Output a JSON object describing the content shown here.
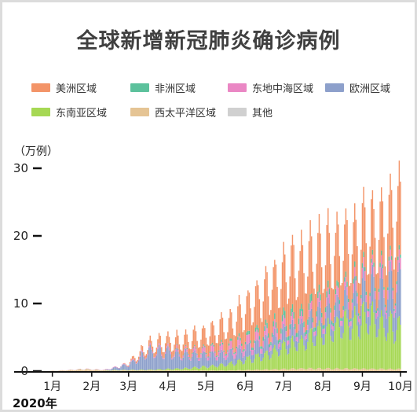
{
  "title": "全球新增新冠肺炎确诊病例",
  "unit_label": "（万例）",
  "year_label": "2020年",
  "chart_data": {
    "type": "bar",
    "stacked": true,
    "title": "全球新增新冠肺炎确诊病例",
    "ylabel": "（万例）",
    "ylim": [
      0,
      30
    ],
    "yticks": [
      0,
      10,
      20,
      30
    ],
    "xlim": [
      "2020-01-01",
      "2020-10-15"
    ],
    "month_ticks": [
      {
        "label": "1月",
        "date": "2020-01-15"
      },
      {
        "label": "2月",
        "date": "2020-02-15"
      },
      {
        "label": "3月",
        "date": "2020-03-15"
      },
      {
        "label": "4月",
        "date": "2020-04-15"
      },
      {
        "label": "5月",
        "date": "2020-05-15"
      },
      {
        "label": "6月",
        "date": "2020-06-15"
      },
      {
        "label": "7月",
        "date": "2020-07-15"
      },
      {
        "label": "8月",
        "date": "2020-08-15"
      },
      {
        "label": "9月",
        "date": "2020-09-15"
      },
      {
        "label": "10月",
        "date": "2020-10-15"
      }
    ],
    "series_order": [
      "西太平洋区域",
      "东南亚区域",
      "欧洲区域",
      "东地中海区域",
      "非洲区域",
      "美洲区域"
    ],
    "series": [
      {
        "name": "美洲区域",
        "color": "#f39468",
        "x": [
          "2020-01-01",
          "2020-03-10",
          "2020-04-10",
          "2020-05-01",
          "2020-06-01",
          "2020-07-01",
          "2020-07-20",
          "2020-08-15",
          "2020-09-10",
          "2020-10-01",
          "2020-10-15"
        ],
        "values": [
          0,
          0,
          1.5,
          2.5,
          4,
          8,
          10,
          10,
          9,
          10,
          13
        ]
      },
      {
        "name": "非洲区域",
        "color": "#5cc19c",
        "x": [
          "2020-01-01",
          "2020-04-01",
          "2020-05-15",
          "2020-06-15",
          "2020-07-15",
          "2020-08-01",
          "2020-09-01",
          "2020-10-15"
        ],
        "values": [
          0,
          0,
          0.2,
          0.5,
          1.1,
          1.2,
          0.8,
          0.6
        ]
      },
      {
        "name": "东地中海区域",
        "color": "#ea87c4",
        "x": [
          "2020-01-01",
          "2020-03-10",
          "2020-05-01",
          "2020-06-15",
          "2020-08-01",
          "2020-09-15",
          "2020-10-15"
        ],
        "values": [
          0,
          0.1,
          0.5,
          1.5,
          1.2,
          1.6,
          1.9
        ]
      },
      {
        "name": "欧洲区域",
        "color": "#8da0cb",
        "x": [
          "2020-01-01",
          "2020-02-25",
          "2020-03-15",
          "2020-04-01",
          "2020-05-01",
          "2020-06-01",
          "2020-07-01",
          "2020-08-01",
          "2020-09-01",
          "2020-10-01",
          "2020-10-15"
        ],
        "values": [
          0,
          0,
          1,
          3.5,
          2.5,
          1.8,
          2.2,
          2.7,
          3.5,
          6,
          8.5
        ]
      },
      {
        "name": "东南亚区域",
        "color": "#a6d854",
        "x": [
          "2020-01-01",
          "2020-04-01",
          "2020-05-01",
          "2020-06-01",
          "2020-07-01",
          "2020-08-01",
          "2020-09-01",
          "2020-09-20",
          "2020-10-15"
        ],
        "values": [
          0,
          0.1,
          0.4,
          1.2,
          2.8,
          5.5,
          8.5,
          10,
          7.5
        ]
      },
      {
        "name": "西太平洋区域",
        "color": "#e5c494",
        "x": [
          "2020-01-01",
          "2020-01-20",
          "2020-02-10",
          "2020-02-25",
          "2020-03-15",
          "2020-04-10",
          "2020-06-01",
          "2020-08-01",
          "2020-10-15"
        ],
        "values": [
          0,
          0.05,
          0.3,
          0.1,
          0.15,
          0.15,
          0.1,
          0.5,
          0.4
        ]
      },
      {
        "name": "其他",
        "color": "#d0d0d0",
        "x": [
          "2020-01-01",
          "2020-10-15"
        ],
        "values": [
          0,
          0
        ]
      }
    ],
    "grid": false,
    "legend": "top"
  }
}
